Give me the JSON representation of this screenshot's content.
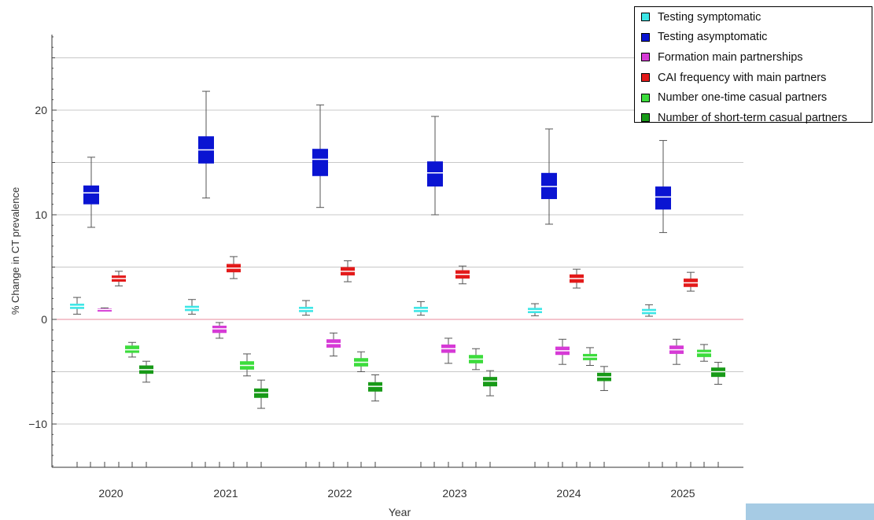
{
  "chart_data": {
    "type": "boxplot",
    "xlabel": "Year",
    "ylabel": "% Change in CT prevalence",
    "ylim": [
      -14.2,
      27.5
    ],
    "yticks": [
      -10,
      0,
      10,
      20
    ],
    "categories": [
      "2020",
      "2021",
      "2022",
      "2023",
      "2024",
      "2025"
    ],
    "grid_lines": [
      -10,
      -5,
      0,
      5,
      10,
      15,
      20,
      25
    ],
    "zero_line_color": "#e8899b",
    "legend_position": "top-right",
    "series": [
      {
        "name": "Testing symptomatic",
        "color": "#3ce6e6",
        "boxes": [
          {
            "min": 0.5,
            "q1": 1.0,
            "median": 1.25,
            "q3": 1.5,
            "max": 2.1
          },
          {
            "min": 0.5,
            "q1": 0.8,
            "median": 1.05,
            "q3": 1.3,
            "max": 1.9
          },
          {
            "min": 0.4,
            "q1": 0.7,
            "median": 0.95,
            "q3": 1.2,
            "max": 1.8
          },
          {
            "min": 0.4,
            "q1": 0.7,
            "median": 0.95,
            "q3": 1.2,
            "max": 1.7
          },
          {
            "min": 0.35,
            "q1": 0.6,
            "median": 0.85,
            "q3": 1.1,
            "max": 1.5
          },
          {
            "min": 0.3,
            "q1": 0.5,
            "median": 0.75,
            "q3": 1.0,
            "max": 1.4
          }
        ]
      },
      {
        "name": "Testing asymptomatic",
        "color": "#0a14d2",
        "boxes": [
          {
            "min": 8.8,
            "q1": 11.0,
            "median": 12.1,
            "q3": 12.8,
            "max": 15.5
          },
          {
            "min": 11.6,
            "q1": 14.9,
            "median": 16.2,
            "q3": 17.5,
            "max": 21.8
          },
          {
            "min": 10.7,
            "q1": 13.7,
            "median": 15.3,
            "q3": 16.3,
            "max": 20.5
          },
          {
            "min": 10.0,
            "q1": 12.7,
            "median": 14.0,
            "q3": 15.1,
            "max": 19.4
          },
          {
            "min": 9.1,
            "q1": 11.5,
            "median": 12.7,
            "q3": 14.0,
            "max": 18.2
          },
          {
            "min": 8.3,
            "q1": 10.5,
            "median": 11.7,
            "q3": 12.7,
            "max": 17.1
          }
        ]
      },
      {
        "name": "Formation main partnerships",
        "color": "#d63ad6",
        "boxes": [
          {
            "min": 0.8,
            "q1": 0.85,
            "median": 0.95,
            "q3": 1.05,
            "max": 1.1
          },
          {
            "min": -1.8,
            "q1": -1.3,
            "median": -0.9,
            "q3": -0.6,
            "max": -0.3
          },
          {
            "min": -3.5,
            "q1": -2.7,
            "median": -2.3,
            "q3": -1.9,
            "max": -1.3
          },
          {
            "min": -4.2,
            "q1": -3.2,
            "median": -2.8,
            "q3": -2.4,
            "max": -1.8
          },
          {
            "min": -4.3,
            "q1": -3.4,
            "median": -3.0,
            "q3": -2.6,
            "max": -1.9
          },
          {
            "min": -4.3,
            "q1": -3.3,
            "median": -2.9,
            "q3": -2.5,
            "max": -1.9
          }
        ]
      },
      {
        "name": "CAI frequency with main partners",
        "color": "#e31a1a",
        "boxes": [
          {
            "min": 3.2,
            "q1": 3.6,
            "median": 3.9,
            "q3": 4.2,
            "max": 4.6
          },
          {
            "min": 3.9,
            "q1": 4.5,
            "median": 4.9,
            "q3": 5.3,
            "max": 6.0
          },
          {
            "min": 3.6,
            "q1": 4.2,
            "median": 4.6,
            "q3": 5.0,
            "max": 5.6
          },
          {
            "min": 3.4,
            "q1": 3.9,
            "median": 4.3,
            "q3": 4.7,
            "max": 5.1
          },
          {
            "min": 3.0,
            "q1": 3.5,
            "median": 3.9,
            "q3": 4.3,
            "max": 4.8
          },
          {
            "min": 2.7,
            "q1": 3.1,
            "median": 3.5,
            "q3": 3.9,
            "max": 4.5
          }
        ]
      },
      {
        "name": "Number one-time casual partners",
        "color": "#3cdc3c",
        "boxes": [
          {
            "min": -3.6,
            "q1": -3.2,
            "median": -2.9,
            "q3": -2.5,
            "max": -2.2
          },
          {
            "min": -5.4,
            "q1": -4.8,
            "median": -4.4,
            "q3": -4.0,
            "max": -3.3
          },
          {
            "min": -5.0,
            "q1": -4.5,
            "median": -4.1,
            "q3": -3.7,
            "max": -3.1
          },
          {
            "min": -4.8,
            "q1": -4.2,
            "median": -3.8,
            "q3": -3.4,
            "max": -2.8
          },
          {
            "min": -4.4,
            "q1": -3.9,
            "median": -3.6,
            "q3": -3.3,
            "max": -2.7
          },
          {
            "min": -4.0,
            "q1": -3.6,
            "median": -3.2,
            "q3": -2.9,
            "max": -2.4
          }
        ]
      },
      {
        "name": "Number of short-term casual partners",
        "color": "#189a18",
        "boxes": [
          {
            "min": -6.0,
            "q1": -5.2,
            "median": -4.8,
            "q3": -4.4,
            "max": -4.0
          },
          {
            "min": -8.5,
            "q1": -7.5,
            "median": -7.0,
            "q3": -6.6,
            "max": -5.8
          },
          {
            "min": -7.8,
            "q1": -6.9,
            "median": -6.4,
            "q3": -6.0,
            "max": -5.3
          },
          {
            "min": -7.3,
            "q1": -6.4,
            "median": -5.9,
            "q3": -5.5,
            "max": -4.9
          },
          {
            "min": -6.8,
            "q1": -5.9,
            "median": -5.5,
            "q3": -5.1,
            "max": -4.5
          },
          {
            "min": -6.2,
            "q1": -5.5,
            "median": -5.0,
            "q3": -4.6,
            "max": -4.1
          }
        ]
      }
    ]
  }
}
